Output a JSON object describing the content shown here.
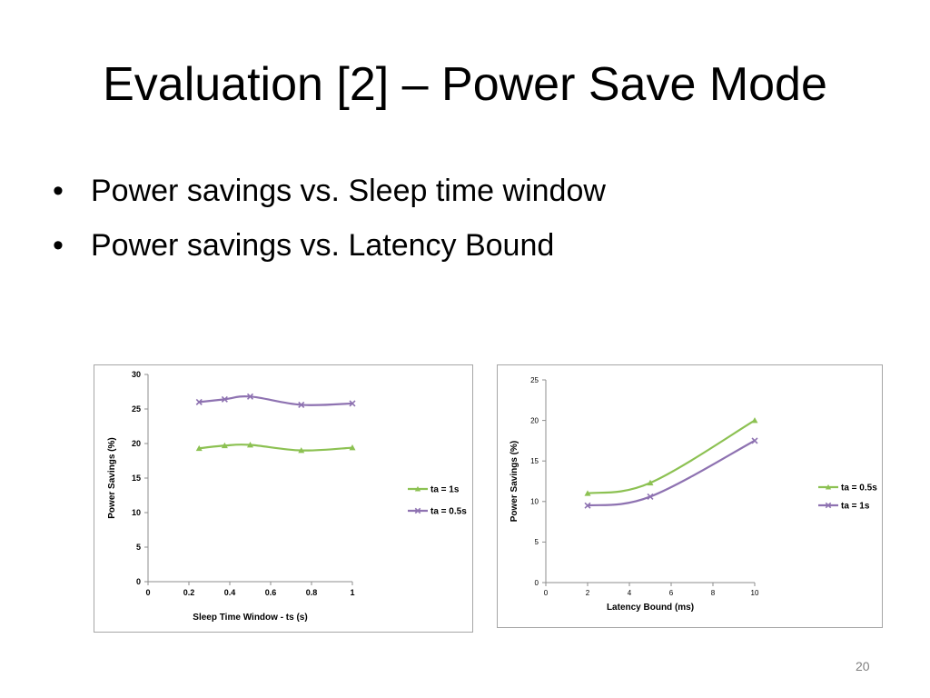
{
  "slide": {
    "title": "Evaluation [2] – Power Save Mode",
    "bullets": [
      "Power savings vs. Sleep time window",
      "Power savings  vs. Latency Bound"
    ],
    "bullet_glyph": "•",
    "page_number": "20"
  },
  "chart_data": [
    {
      "type": "line",
      "title": "",
      "xlabel": "Sleep Time Window - ts (s)",
      "ylabel": "Power Savings (%)",
      "xlim": [
        0,
        1
      ],
      "ylim": [
        0,
        30
      ],
      "xticks": [
        0,
        0.2,
        0.4,
        0.6,
        0.8,
        1
      ],
      "xtick_labels": [
        "0",
        "0.2",
        "0.4",
        "0.6",
        "0.8",
        "1"
      ],
      "yticks": [
        0,
        5,
        10,
        15,
        20,
        25,
        30
      ],
      "ytick_labels": [
        "0",
        "5",
        "10",
        "15",
        "20",
        "25",
        "30"
      ],
      "grid": false,
      "legend": "right",
      "series": [
        {
          "name": "ta = 1s",
          "color": "#8cc152",
          "marker": "triangle",
          "x": [
            0.25,
            0.375,
            0.5,
            0.75,
            1
          ],
          "y": [
            19.3,
            19.7,
            19.8,
            19.0,
            19.4
          ]
        },
        {
          "name": "ta = 0.5s",
          "color": "#8e72b1",
          "marker": "x",
          "x": [
            0.25,
            0.375,
            0.5,
            0.75,
            1
          ],
          "y": [
            26.0,
            26.4,
            26.8,
            25.6,
            25.8
          ]
        }
      ]
    },
    {
      "type": "line",
      "title": "",
      "xlabel": "Latency Bound (ms)",
      "ylabel": "Power Savings (%)",
      "xlim": [
        0,
        10
      ],
      "ylim": [
        0,
        25
      ],
      "xticks": [
        0,
        2,
        4,
        6,
        8,
        10
      ],
      "xtick_labels": [
        "0",
        "2",
        "4",
        "6",
        "8",
        "10"
      ],
      "yticks": [
        0,
        5,
        10,
        15,
        20,
        25
      ],
      "ytick_labels": [
        "0",
        "5",
        "10",
        "15",
        "20",
        "25"
      ],
      "grid": false,
      "legend": "right",
      "series": [
        {
          "name": "ta = 0.5s",
          "color": "#8cc152",
          "marker": "triangle",
          "x": [
            2,
            5,
            10
          ],
          "y": [
            11.0,
            12.3,
            20.0
          ]
        },
        {
          "name": "ta = 1s",
          "color": "#8e72b1",
          "marker": "x",
          "x": [
            2,
            5,
            10
          ],
          "y": [
            9.5,
            10.6,
            17.5
          ]
        }
      ]
    }
  ]
}
